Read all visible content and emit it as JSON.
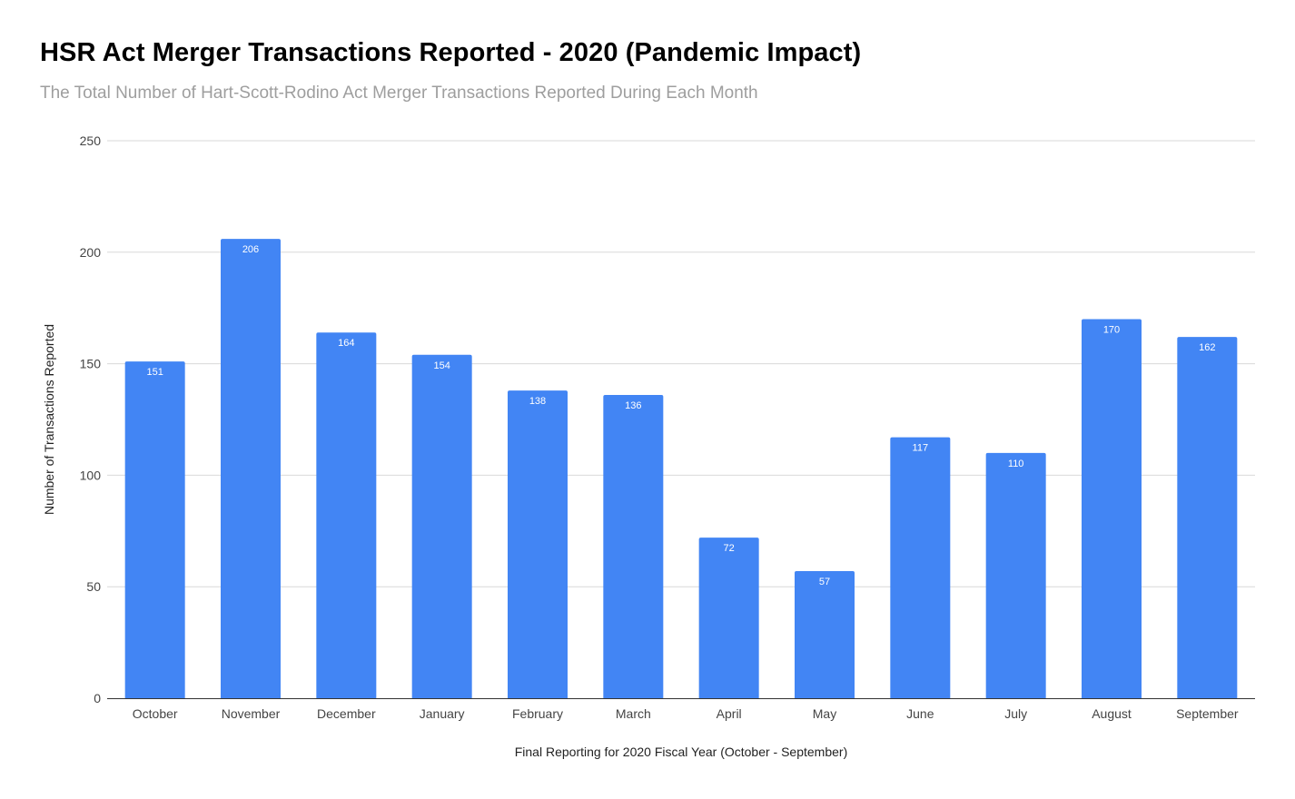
{
  "chart_data": {
    "type": "bar",
    "title": "HSR Act Merger Transactions Reported - 2020 (Pandemic Impact)",
    "subtitle": "The Total Number of Hart-Scott-Rodino Act Merger Transactions Reported During Each Month",
    "xlabel": "Final Reporting for 2020 Fiscal Year (October - September)",
    "ylabel": "Number of Transactions Reported",
    "categories": [
      "October",
      "November",
      "December",
      "January",
      "February",
      "March",
      "April",
      "May",
      "June",
      "July",
      "August",
      "September"
    ],
    "values": [
      151,
      206,
      164,
      154,
      138,
      136,
      72,
      57,
      117,
      110,
      170,
      162
    ],
    "ylim": [
      0,
      250
    ],
    "yticks": [
      0,
      50,
      100,
      150,
      200,
      250
    ],
    "grid": true,
    "legend": "none",
    "bar_color": "#4285f4",
    "gridline_color": "#d9d9d9",
    "axis_color": "#333333",
    "data_labels": true
  }
}
